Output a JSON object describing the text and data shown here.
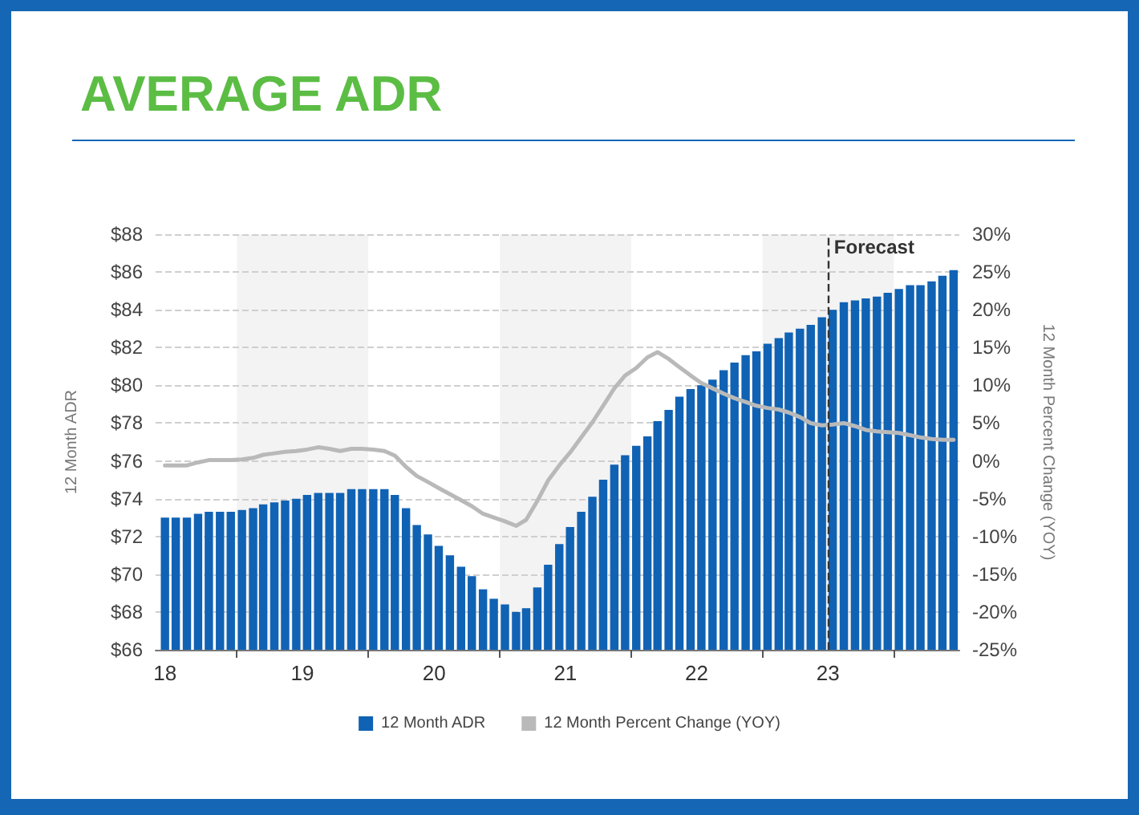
{
  "chart_data": {
    "type": "bar",
    "title": "AVERAGE ADR",
    "ylabel": "12 Month ADR",
    "y2label": "12 Month Percent Change (YOY)",
    "x": [
      "2018-06-15",
      "2018-07-15",
      "2018-08-15",
      "2018-09-15",
      "2018-10-15",
      "2018-11-15",
      "2018-12-15",
      "2019-01-15",
      "2019-02-15",
      "2019-03-15",
      "2019-04-15",
      "2019-05-15",
      "2019-06-15",
      "2019-07-15",
      "2019-08-15",
      "2019-09-15",
      "2019-10-15",
      "2019-11-15",
      "2019-12-15",
      "2020-01-15",
      "2020-02-15",
      "2020-03-15",
      "2020-04-15",
      "2020-05-15",
      "2020-06-15",
      "2020-07-15",
      "2020-08-15",
      "2020-09-15",
      "2020-10-15",
      "2020-11-15",
      "2020-12-15",
      "2021-01-15",
      "2021-02-15",
      "2021-03-15",
      "2021-04-15",
      "2021-05-15",
      "2021-06-15",
      "2021-07-15",
      "2021-08-15",
      "2021-09-15",
      "2021-10-15",
      "2021-11-15",
      "2021-12-15",
      "2022-01-15",
      "2022-02-15",
      "2022-03-15",
      "2022-04-15",
      "2022-05-15",
      "2022-06-15",
      "2022-07-15",
      "2022-08-15",
      "2022-09-15",
      "2022-10-15",
      "2022-11-15",
      "2022-12-15",
      "2023-01-15",
      "2023-02-15",
      "2023-03-15",
      "2023-04-15",
      "2023-05-15",
      "2023-06-15",
      "2023-07-15",
      "2023-08-15",
      "2023-09-15",
      "2023-10-15",
      "2023-11-15",
      "2023-12-15",
      "2024-01-15",
      "2024-02-15",
      "2024-03-15",
      "2024-04-15",
      "2024-05-15",
      "2024-06-15"
    ],
    "series": [
      {
        "name": "12 Month ADR",
        "color": "#1062b4",
        "values": [
          73.0,
          73.0,
          73.0,
          73.2,
          73.3,
          73.3,
          73.3,
          73.4,
          73.5,
          73.7,
          73.8,
          73.9,
          74.0,
          74.2,
          74.3,
          74.3,
          74.3,
          74.5,
          74.5,
          74.5,
          74.5,
          74.2,
          73.5,
          72.6,
          72.1,
          71.5,
          71.0,
          70.4,
          69.9,
          69.2,
          68.7,
          68.4,
          68.0,
          68.2,
          69.3,
          70.5,
          71.6,
          72.5,
          73.3,
          74.1,
          75.0,
          75.8,
          76.3,
          76.8,
          77.3,
          78.1,
          78.7,
          79.4,
          79.8,
          80.0,
          80.3,
          80.8,
          81.2,
          81.6,
          81.8,
          82.2,
          82.5,
          82.8,
          83.0,
          83.2,
          83.6,
          84.0,
          84.4,
          84.5,
          84.6,
          84.7,
          84.9,
          85.1,
          85.3,
          85.3,
          85.5,
          85.8,
          86.1
        ]
      },
      {
        "name": "12 Month Percent Change (YOY)",
        "type": "line",
        "axis": "y2",
        "color": "#b9b9b9",
        "values": [
          -0.6,
          -0.6,
          -0.6,
          -0.2,
          0.1,
          0.1,
          0.1,
          0.2,
          0.4,
          0.8,
          1.0,
          1.2,
          1.3,
          1.5,
          1.8,
          1.6,
          1.3,
          1.6,
          1.6,
          1.5,
          1.3,
          0.7,
          -0.8,
          -2.0,
          -2.8,
          -3.6,
          -4.4,
          -5.2,
          -6.0,
          -7.0,
          -7.5,
          -8.0,
          -8.6,
          -7.8,
          -5.3,
          -2.6,
          -0.6,
          1.1,
          3.1,
          5.1,
          7.3,
          9.6,
          11.3,
          12.3,
          13.7,
          14.4,
          13.5,
          12.4,
          11.3,
          10.3,
          9.6,
          8.9,
          8.3,
          7.8,
          7.3,
          7.0,
          6.8,
          6.4,
          5.8,
          5.0,
          4.7,
          4.8,
          5.0,
          4.6,
          4.1,
          3.9,
          3.8,
          3.7,
          3.4,
          3.1,
          2.9,
          2.8,
          2.8
        ]
      }
    ],
    "xlim": [
      "2018-05-20",
      "2024-07-01"
    ],
    "xticks": [
      {
        "value": "2018-06-15",
        "label": "18"
      },
      {
        "value": "2019-01-01",
        "label": null
      },
      {
        "value": "2019-07-02",
        "label": "19"
      },
      {
        "value": "2020-01-01",
        "label": null
      },
      {
        "value": "2020-07-02",
        "label": "20"
      },
      {
        "value": "2021-01-01",
        "label": null
      },
      {
        "value": "2021-07-02",
        "label": "21"
      },
      {
        "value": "2022-01-01",
        "label": null
      },
      {
        "value": "2022-07-02",
        "label": "22"
      },
      {
        "value": "2023-01-01",
        "label": null
      },
      {
        "value": "2023-07-02",
        "label": "23"
      },
      {
        "value": "2024-01-01",
        "label": null
      }
    ],
    "ylim": [
      66,
      88
    ],
    "yticks": [
      {
        "value": 66,
        "label": "$66"
      },
      {
        "value": 68,
        "label": "$68"
      },
      {
        "value": 70,
        "label": "$70"
      },
      {
        "value": 72,
        "label": "$72"
      },
      {
        "value": 74,
        "label": "$74"
      },
      {
        "value": 76,
        "label": "$76"
      },
      {
        "value": 78,
        "label": "$78"
      },
      {
        "value": 80,
        "label": "$80"
      },
      {
        "value": 82,
        "label": "$82"
      },
      {
        "value": 84,
        "label": "$84"
      },
      {
        "value": 86,
        "label": "$86"
      },
      {
        "value": 88,
        "label": "$88"
      }
    ],
    "y2lim": [
      -25,
      30
    ],
    "y2ticks": [
      {
        "value": -25,
        "label": "-25%"
      },
      {
        "value": -20,
        "label": "-20%"
      },
      {
        "value": -15,
        "label": "-15%"
      },
      {
        "value": -10,
        "label": "-10%"
      },
      {
        "value": -5,
        "label": "-5%"
      },
      {
        "value": 0,
        "label": "0%"
      },
      {
        "value": 5,
        "label": "5%"
      },
      {
        "value": 10,
        "label": "10%"
      },
      {
        "value": 15,
        "label": "15%"
      },
      {
        "value": 20,
        "label": "20%"
      },
      {
        "value": 25,
        "label": "25%"
      },
      {
        "value": 30,
        "label": "30%"
      }
    ],
    "ref_lines": [
      {
        "axis": "x",
        "value": "2023-07-01",
        "label": "Forecast",
        "color": "#333333",
        "line_style": "dashed"
      }
    ],
    "bands": [
      {
        "axis": "x",
        "from": "2019-01-01",
        "to": "2020-01-01",
        "color": "#f3f3f3"
      },
      {
        "axis": "x",
        "from": "2021-01-01",
        "to": "2022-01-01",
        "color": "#f3f3f3"
      },
      {
        "axis": "x",
        "from": "2023-01-01",
        "to": "2024-01-01",
        "color": "#f3f3f3"
      }
    ],
    "grid": "y",
    "legend": "bottom",
    "marker": "none",
    "line_style": "solid"
  }
}
